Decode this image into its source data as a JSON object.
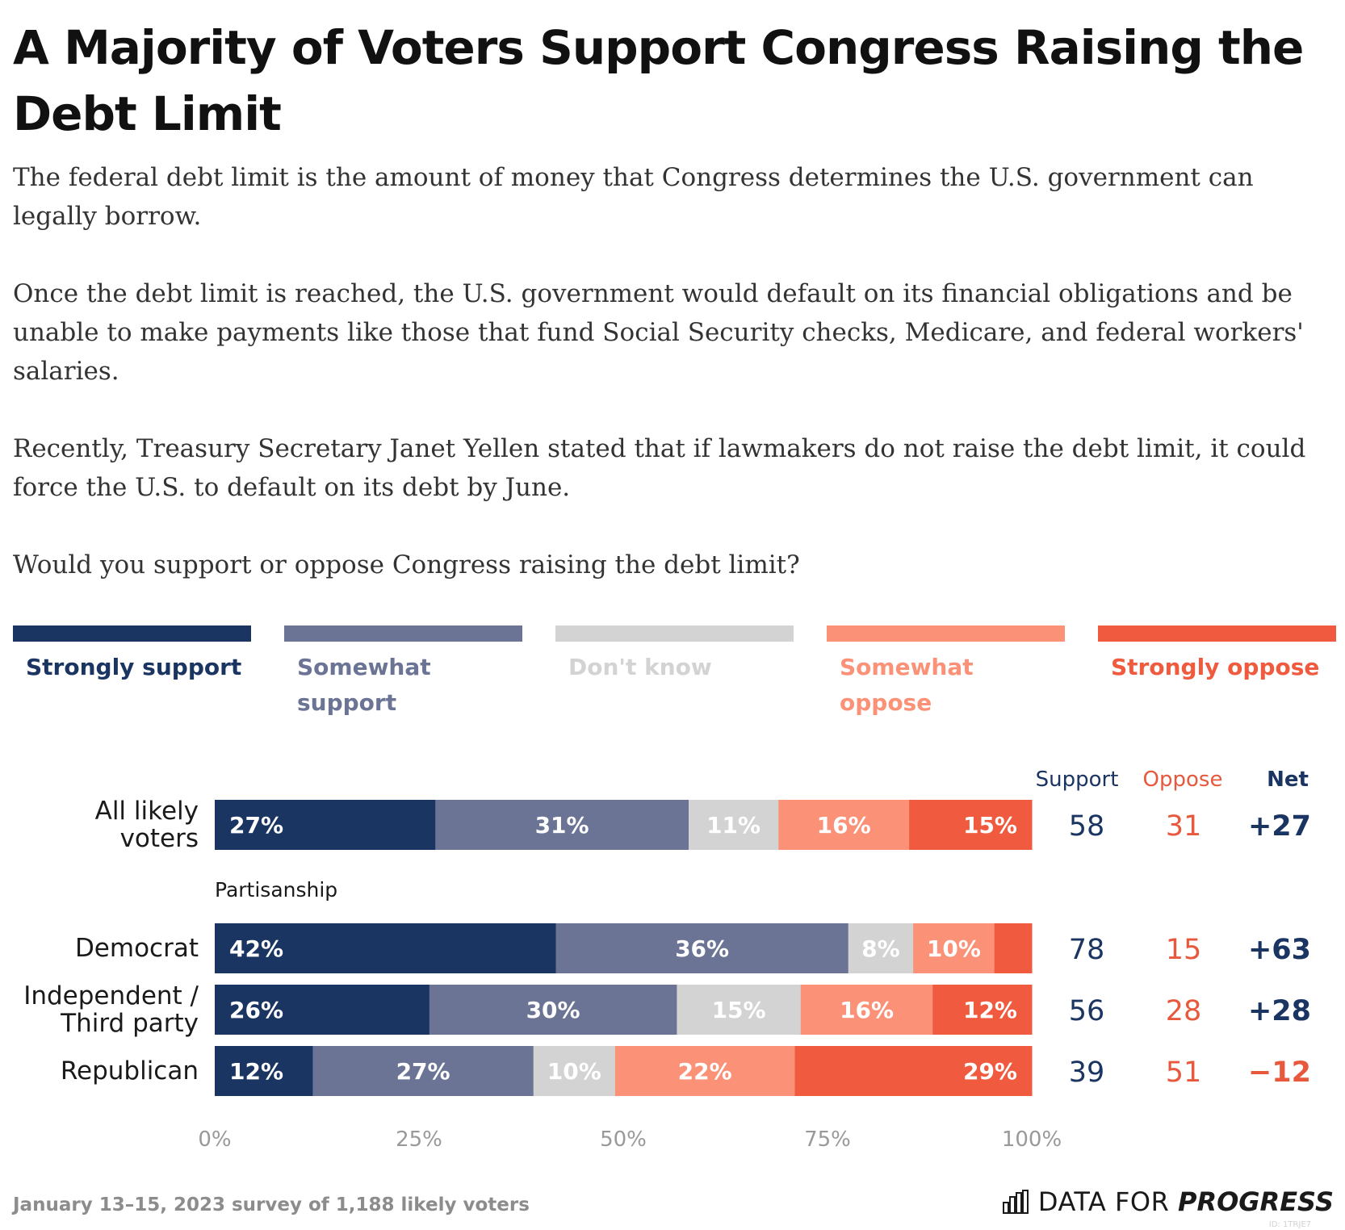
{
  "title": "A Majority of Voters Support Congress Raising the Debt Limit",
  "intro": [
    "The federal debt limit is the amount of money that Congress determines the U.S. government can legally borrow.",
    "Once the debt limit is reached, the U.S. government would default on its financial obligations and be unable to make payments like those that fund Social Security checks, Medicare, and federal workers' salaries.",
    "Recently, Treasury Secretary Janet Yellen stated that if lawmakers do not raise the debt limit, it could force the U.S. to default on its debt by June.",
    "Would you support or oppose Congress raising the debt limit?"
  ],
  "legend": [
    {
      "label": "Strongly support",
      "color": "#1b3563"
    },
    {
      "label": "Somewhat support",
      "color": "#6b7494"
    },
    {
      "label": "Don't know",
      "color": "#d3d3d3"
    },
    {
      "label": "Somewhat oppose",
      "color": "#fb9177"
    },
    {
      "label": "Strongly oppose",
      "color": "#f05a3e"
    }
  ],
  "chart_data": {
    "type": "bar",
    "orientation": "horizontal",
    "stacked": true,
    "xlim": [
      0,
      100
    ],
    "xticks": [
      "0%",
      "25%",
      "50%",
      "75%",
      "100%"
    ],
    "group_label": "Partisanship",
    "summary_headers": {
      "support": "Support",
      "oppose": "Oppose",
      "net": "Net"
    },
    "series_names": [
      "Strongly support",
      "Somewhat support",
      "Don't know",
      "Somewhat oppose",
      "Strongly oppose"
    ],
    "rows": [
      {
        "label": [
          "All likely",
          "voters"
        ],
        "values": [
          27,
          31,
          11,
          16,
          15
        ],
        "labels": [
          "27%",
          "31%",
          "11%",
          "16%",
          "15%"
        ],
        "support": "58",
        "oppose": "31",
        "net": "+27"
      },
      {
        "label": [
          "Democrat"
        ],
        "values": [
          42,
          36,
          8,
          10,
          4.6
        ],
        "labels": [
          "42%",
          "36%",
          "8%",
          "10%",
          ""
        ],
        "support": "78",
        "oppose": "15",
        "net": "+63"
      },
      {
        "label": [
          "Independent /",
          "Third party"
        ],
        "values": [
          26,
          30,
          15,
          16,
          12
        ],
        "labels": [
          "26%",
          "30%",
          "15%",
          "16%",
          "12%"
        ],
        "support": "56",
        "oppose": "28",
        "net": "+28"
      },
      {
        "label": [
          "Republican"
        ],
        "values": [
          12,
          27,
          10,
          22,
          29
        ],
        "labels": [
          "12%",
          "27%",
          "10%",
          "22%",
          "29%"
        ],
        "support": "39",
        "oppose": "51",
        "net": "−12"
      }
    ],
    "colors": {
      "segments": [
        "#1b3563",
        "#6b7494",
        "#d3d3d3",
        "#fb9177",
        "#f05a3e"
      ],
      "support": "#1b3563",
      "oppose": "#e8583c",
      "net_positive": "#1b3563",
      "net_negative": "#e8583c",
      "axis": "#999999"
    }
  },
  "footer": {
    "note": "January 13–15, 2023 survey of 1,188 likely voters",
    "brand_light": "DATA FOR",
    "brand_bold": "PROGRESS",
    "id": "ID: 1TRJE7"
  }
}
